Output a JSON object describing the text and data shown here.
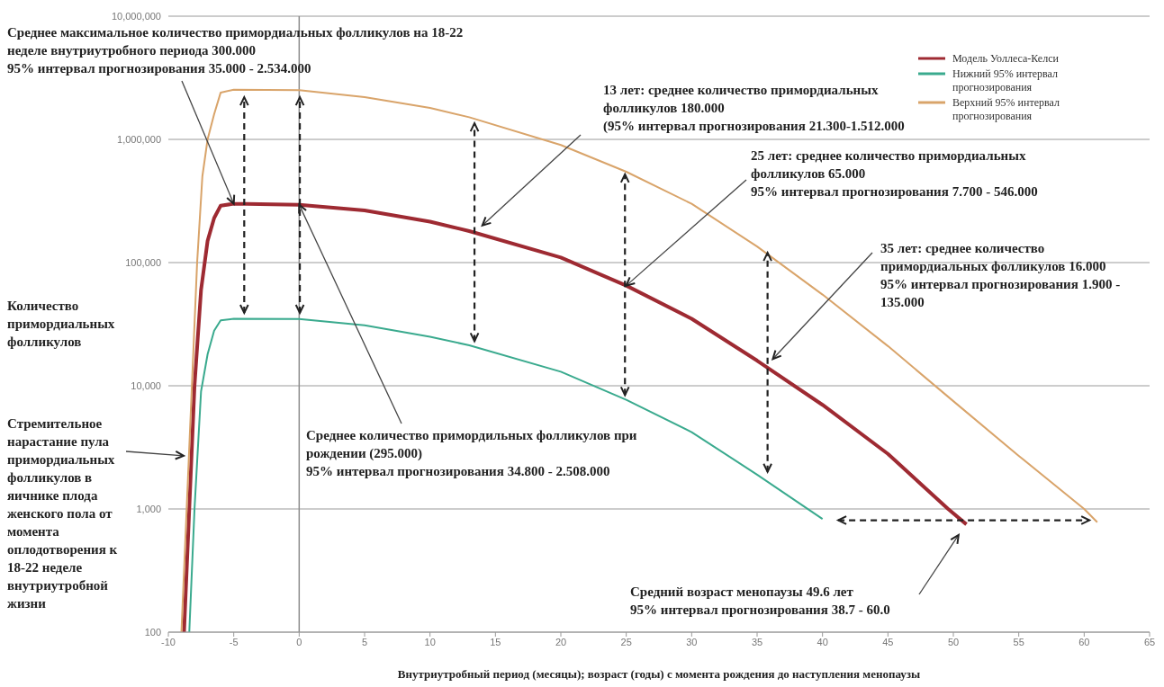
{
  "chart_data": {
    "type": "line",
    "xlabel": "Внутриутробный период (месяцы); возраст (годы) с момента рождения до наступления менопаузы",
    "ylabel": "Количество примордиальных фолликулов",
    "xlim": [
      -10,
      65
    ],
    "xticks": [
      -10,
      -5,
      0,
      5,
      10,
      15,
      20,
      25,
      30,
      35,
      40,
      45,
      50,
      55,
      60,
      65
    ],
    "ylim": [
      100,
      10000000
    ],
    "log": true,
    "yticks": [
      {
        "value": 100,
        "label": "100"
      },
      {
        "value": 1000,
        "label": "1,000"
      },
      {
        "value": 10000,
        "label": "10,000"
      },
      {
        "value": 100000,
        "label": "100,000"
      },
      {
        "value": 1000000,
        "label": "1,000,000"
      },
      {
        "value": 10000000,
        "label": "10,000,000"
      }
    ],
    "grid": "y",
    "legend": "top right",
    "ref_lines": [
      {
        "axis": "x",
        "value": 0,
        "color": "#8c8c8c"
      }
    ],
    "series": [
      {
        "name": "Модель Уоллеса-Келси",
        "color": "#9e2a32",
        "x": [
          -8.8,
          -8.4,
          -8,
          -7.5,
          -7,
          -6.5,
          -6,
          -5,
          -4,
          0,
          5,
          10,
          13,
          20,
          25,
          30,
          35,
          40,
          45,
          49.6,
          51
        ],
        "values": [
          100,
          1000,
          10000,
          60000,
          150000,
          230000,
          290000,
          300000,
          300000,
          295000,
          265000,
          215000,
          180000,
          110000,
          65000,
          35000,
          16000,
          7000,
          2800,
          1000,
          750
        ]
      },
      {
        "name": "Нижний 95% интервал прогнозирования",
        "color": "#3aaa8e",
        "x": [
          -8.4,
          -8,
          -7.5,
          -7,
          -6.5,
          -6,
          -5,
          0,
          5,
          10,
          13,
          20,
          25,
          30,
          35,
          40
        ],
        "values": [
          100,
          1000,
          9000,
          18000,
          28000,
          34000,
          35000,
          34800,
          31000,
          25000,
          21300,
          13000,
          7700,
          4200,
          1900,
          830
        ]
      },
      {
        "name": "Верхний 95% интервал прогнозирования",
        "color": "#d9a46a",
        "x": [
          -9,
          -8.6,
          -8.2,
          -7.8,
          -7.4,
          -7,
          -6.5,
          -6,
          -5,
          0,
          5,
          10,
          13,
          20,
          25,
          30,
          35,
          40,
          45,
          50,
          55,
          60,
          61
        ],
        "values": [
          100,
          1000,
          10000,
          100000,
          500000,
          1000000,
          1600000,
          2400000,
          2534000,
          2508000,
          2200000,
          1800000,
          1512000,
          900000,
          546000,
          300000,
          135000,
          55000,
          21000,
          7500,
          2700,
          1000,
          780
        ]
      }
    ],
    "annotations": [
      {
        "text": "Среднее максимальное количество примордиальных фолликулов на 18-22\nнеделе внутриутробного периода 300.000\n95% интервал прогнозирования 35.000 - 2.534.000",
        "x": -5,
        "y": 300000
      },
      "13 лет: среднее количество примордиальных фолликулов 180.000\n(95% интервал прогнозирования 21.300-1.512.000",
      {
        "text": "25 лет: среднее количество примордиальных фолликулов 65.000\n95% интервал прогнозирования 7.700 - 546.000",
        "x": 25,
        "y": 65000
      },
      "35 лет: среднее количество примордиальных фолликулов 16.000\n95% интервал прогнозирования 1.900 - 135.000",
      {
        "text": "Среднее количество примордильных фолликулов при рождении (295.000)\n95% интервал прогнозирования 34.800 - 2.508.000",
        "x": 0,
        "y": 295000
      },
      "Стремительное нарастание пула примордиальных фолликулов в яичнике плода женского пола от момента оплодотворения к 18-22 неделе внутриутробной жизни",
      "Средний возраст менопаузы 49.6 лет\n95% интервал прогнозирования 38.7 - 60.0"
    ]
  }
}
